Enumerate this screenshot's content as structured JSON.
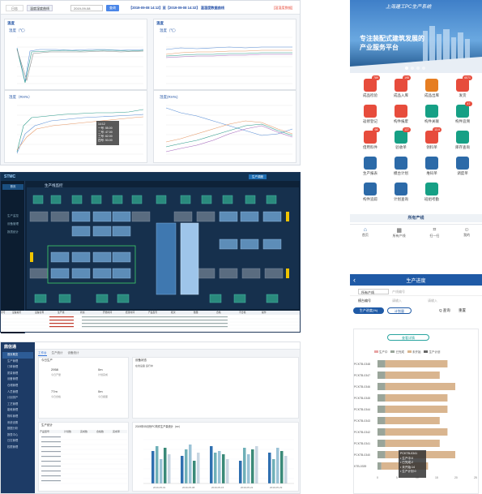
{
  "top": {
    "tab1": "日志",
    "tab2": "温度湿度曲线",
    "date_input": "2019-09-08",
    "query_btn": "查询",
    "range_text": "【2019-09-08 14:12】至【2019-09-08 14:32】 温湿度数据曲线",
    "latest": "[温湿度数据]",
    "left_title": "温度",
    "right_title": "温度",
    "bl_title": "湿度",
    "br_title": "湿度",
    "temp_axis": "温度（℃）",
    "hum_axis_l": "湿度（RH%）",
    "hum_axis_r": "湿度(RH%)",
    "legend": [
      "一号",
      "二号",
      "三号",
      "四号"
    ],
    "tooltip": [
      "14:12",
      "一号: 55.00",
      "二号: 47.00",
      "三号: 62.00",
      "四号: 53.00"
    ]
  },
  "scada": {
    "logo": "STMC",
    "menu": [
      "首页",
      "生产监控",
      "设备管理",
      "报表统计"
    ],
    "title": "生产线监控",
    "panel_btn": "生产调度",
    "nums_top": [
      "1",
      "2",
      "3",
      "4",
      "5",
      "6",
      "7",
      "8",
      "9",
      "10"
    ],
    "table_headers": [
      "序号",
      "设备编号",
      "设备名称",
      "生产线",
      "状态",
      "开始时间",
      "结束时间",
      "产品型号",
      "批次",
      "数量",
      "合格",
      "不合格",
      "操作"
    ]
  },
  "dash": {
    "logo": "鼎信通",
    "nav": [
      "首页概览",
      "生产管理",
      "订单管理",
      "质量管理",
      "设备管理",
      "仓储管理",
      "人员管理",
      "计划排产",
      "工艺管理",
      "能耗管理",
      "物料管理",
      "系统设置",
      "数据分析",
      "报表中心",
      "日志管理",
      "权限管理"
    ],
    "tabs": [
      "工作台",
      "生产统计",
      "设备统计"
    ],
    "card1_title": "今日生产",
    "card1": [
      {
        "v": "2958",
        "u": "今日产量"
      },
      {
        "v": "0m",
        "u": "计划完成"
      },
      {
        "v": "77m",
        "u": "今日合格"
      },
      {
        "v": "0m",
        "u": "今日报废"
      }
    ],
    "card2_title": "设备状态",
    "card2_legend": "在线设备 运行中",
    "table_title": "生产统计",
    "table_headers": [
      "产品型号",
      "计划数",
      "完成数",
      "合格数",
      "完成率"
    ],
    "chart_title": "2019年05月份PC构件生产量统计（m³）",
    "chart_legend": [
      "叠合板",
      "预制墙",
      "预制梁",
      "预制柱",
      "楼梯"
    ],
    "x_labels": [
      "2019-05-01",
      "2019-05-08",
      "2019-05-15",
      "2019-05-22",
      "2019-05-29"
    ]
  },
  "mobile": {
    "banner_title": "上海建工PC生产系统",
    "banner_line1": "专注装配式建筑发展的",
    "banner_line2": "产业服务平台",
    "icons": [
      {
        "label": "成品检验",
        "badge": "789",
        "color": "#e74c3c"
      },
      {
        "label": "成品入库",
        "badge": "195",
        "color": "#e74c3c"
      },
      {
        "label": "成品出库",
        "badge": "",
        "color": "#e67e22"
      },
      {
        "label": "发货",
        "badge": "6571",
        "color": "#e74c3c"
      },
      {
        "label": "返修登记",
        "badge": "",
        "color": "#e74c3c"
      },
      {
        "label": "构件报废",
        "badge": "",
        "color": "#e74c3c"
      },
      {
        "label": "构件关联",
        "badge": "",
        "color": "#16a085"
      },
      {
        "label": "构件追溯",
        "badge": "47",
        "color": "#16a085"
      },
      {
        "label": "借用料件",
        "badge": "98",
        "color": "#e74c3c"
      },
      {
        "label": "验收单",
        "badge": "127",
        "color": "#16a085"
      },
      {
        "label": "领料单",
        "badge": "13.9",
        "color": "#e74c3c"
      },
      {
        "label": "库存查询",
        "badge": "",
        "color": "#16a085"
      },
      {
        "label": "生产报表",
        "badge": "",
        "color": "#2c6aa8"
      },
      {
        "label": "模台计划",
        "badge": "",
        "color": "#2c6aa8"
      },
      {
        "label": "堆码单",
        "badge": "",
        "color": "#2c6aa8"
      },
      {
        "label": "调度单",
        "badge": "",
        "color": "#2c6aa8"
      },
      {
        "label": "构件追踪",
        "badge": "",
        "color": "#2c6aa8"
      },
      {
        "label": "计划查询",
        "badge": "",
        "color": "#2c6aa8"
      },
      {
        "label": "班组考勤",
        "badge": "",
        "color": "#16a085"
      }
    ],
    "section_title": "所有产线",
    "bottom_nav": [
      "首页",
      "所有产线",
      "扫一扫",
      "我的"
    ],
    "progress_title": "生产进度",
    "filter_select": "所有产线",
    "filter_hint": "产线编号",
    "filter_label2": "模台编号",
    "filter_hint2": "请输入",
    "filter_hint3": "请输入",
    "btn_blue": "生产进度(%)",
    "btn_white": "计划量",
    "search_lbl": "Q 查询",
    "reset_lbl": "重置",
    "chart_btn": "查看详情",
    "legend": [
      "生产中",
      "已完成",
      "未开始",
      "生产计划"
    ],
    "rows": [
      "PCKTB-0348",
      "PCKTB-0347",
      "PCKTB-0346",
      "PCKTB-0345",
      "PCKTB-0344",
      "PCKTB-0343",
      "PCKTB-0342",
      "PCKTB-0341",
      "PCKTB-0340",
      "KTB-0339"
    ],
    "tooltip": [
      "PCKTB-0341",
      "• 生产中:0",
      "• 已完成:2",
      "• 未开始:14",
      "• 生产计划:0"
    ],
    "axis": [
      "0",
      "5",
      "10",
      "15",
      "20",
      "25"
    ]
  }
}
